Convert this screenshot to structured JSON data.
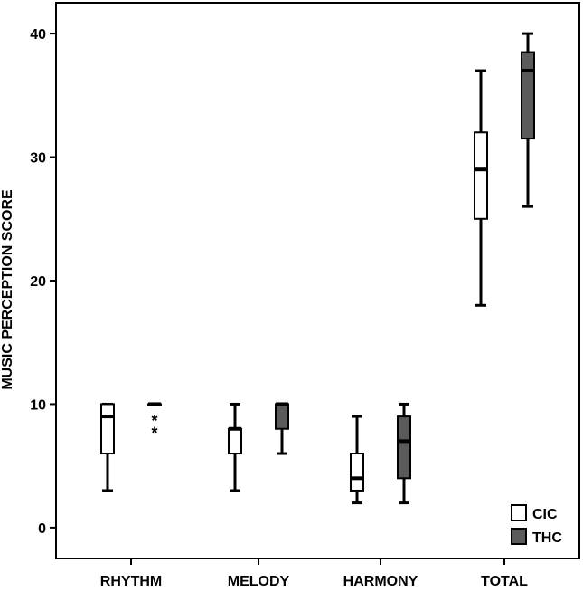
{
  "chart_data": {
    "type": "boxplot",
    "title": "",
    "xlabel": "",
    "ylabel": "MUSIC PERCEPTION SCORE",
    "ylim": [
      -2.5,
      42.5
    ],
    "yticks": [
      0,
      10,
      20,
      30,
      40
    ],
    "categories": [
      "RHYTHM",
      "MELODY",
      "HARMONY",
      "TOTAL"
    ],
    "grid": false,
    "legend_position": "bottom-right",
    "series": [
      {
        "name": "CIC",
        "fill": "#ffffff",
        "boxes": [
          {
            "min": 3,
            "q1": 6,
            "median": 9,
            "q3": 10,
            "max": 10
          },
          {
            "min": 3,
            "q1": 6,
            "median": 8,
            "q3": 8,
            "max": 10
          },
          {
            "min": 2,
            "q1": 3,
            "median": 4,
            "q3": 6,
            "max": 9
          },
          {
            "min": 18,
            "q1": 25,
            "median": 29,
            "q3": 32,
            "max": 37
          }
        ]
      },
      {
        "name": "THC",
        "fill": "#5a5a5a",
        "boxes": [
          {
            "min": 10,
            "q1": 10,
            "median": 10,
            "q3": 10,
            "max": 10,
            "outliers": [
              9,
              8
            ]
          },
          {
            "min": 6,
            "q1": 8,
            "median": 10,
            "q3": 10,
            "max": 10
          },
          {
            "min": 2,
            "q1": 4,
            "median": 7,
            "q3": 9,
            "max": 10
          },
          {
            "min": 26,
            "q1": 31.5,
            "median": 37,
            "q3": 38.5,
            "max": 40
          }
        ]
      }
    ],
    "outlier_marker": "*"
  }
}
